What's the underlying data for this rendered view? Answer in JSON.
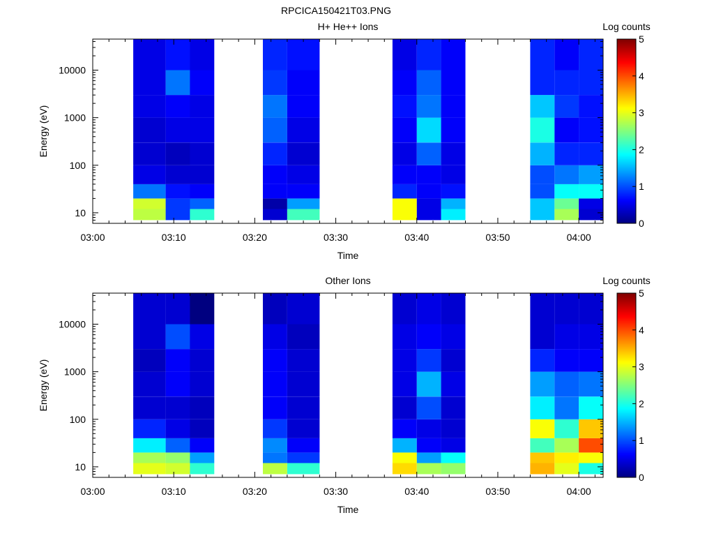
{
  "figure_title": "RPCICA150421T03.PNG",
  "chart_data": [
    {
      "type": "heatmap",
      "title": "H+ He++ Ions",
      "xlabel": "Time",
      "ylabel": "Energy (eV)",
      "y_scale": "log",
      "ylim": [
        6,
        45000
      ],
      "x_ticks": [
        "03:00",
        "03:10",
        "03:20",
        "03:30",
        "03:40",
        "03:50",
        "04:00"
      ],
      "y_ticks": [
        "10",
        "100",
        "1000",
        "10000"
      ],
      "colorbar": {
        "label": "Log counts",
        "range": [
          0,
          5
        ],
        "ticks": [
          "0",
          "1",
          "2",
          "3",
          "4",
          "5"
        ],
        "colormap": "jet"
      },
      "time_bins": [
        {
          "start": "03:05",
          "end": "03:09"
        },
        {
          "start": "03:09",
          "end": "03:12"
        },
        {
          "start": "03:12",
          "end": "03:15"
        },
        {
          "start": "03:21",
          "end": "03:24"
        },
        {
          "start": "03:24",
          "end": "03:28"
        },
        {
          "start": "03:37",
          "end": "03:40"
        },
        {
          "start": "03:40",
          "end": "03:43"
        },
        {
          "start": "03:43",
          "end": "03:46"
        },
        {
          "start": "03:54",
          "end": "03:57"
        },
        {
          "start": "03:57",
          "end": "04:00"
        },
        {
          "start": "04:00",
          "end": "04:03"
        }
      ],
      "energy_rows": [
        {
          "min": 7,
          "max": 12,
          "values": [
            2.8,
            0.9,
            2.1,
            0.4,
            2.2,
            3.1,
            0.5,
            1.8,
            1.6,
            2.7,
            0.4
          ]
        },
        {
          "min": 12,
          "max": 20,
          "values": [
            2.9,
            0.9,
            1.1,
            0.2,
            1.4,
            3.1,
            0.5,
            1.5,
            1.6,
            2.4,
            0.5
          ]
        },
        {
          "min": 20,
          "max": 40,
          "values": [
            1.2,
            0.7,
            0.6,
            0.6,
            0.6,
            0.8,
            0.6,
            0.7,
            1.0,
            1.9,
            1.9
          ]
        },
        {
          "min": 40,
          "max": 100,
          "values": [
            0.5,
            0.4,
            0.4,
            0.6,
            0.5,
            0.6,
            0.6,
            0.5,
            1.0,
            1.2,
            1.4
          ]
        },
        {
          "min": 100,
          "max": 300,
          "values": [
            0.4,
            0.3,
            0.4,
            0.8,
            0.4,
            0.5,
            1.1,
            0.5,
            1.5,
            0.8,
            0.8
          ]
        },
        {
          "min": 300,
          "max": 1000,
          "values": [
            0.4,
            0.5,
            0.5,
            1.1,
            0.5,
            0.6,
            1.7,
            0.6,
            2.0,
            0.6,
            0.7
          ]
        },
        {
          "min": 1000,
          "max": 3000,
          "values": [
            0.5,
            0.6,
            0.5,
            1.2,
            0.6,
            0.7,
            1.2,
            0.6,
            1.6,
            0.9,
            0.7
          ]
        },
        {
          "min": 3000,
          "max": 10000,
          "values": [
            0.5,
            1.2,
            0.6,
            0.9,
            0.6,
            0.6,
            1.1,
            0.6,
            0.8,
            0.8,
            0.8
          ]
        },
        {
          "min": 10000,
          "max": 45000,
          "values": [
            0.5,
            0.7,
            0.5,
            0.8,
            0.7,
            0.5,
            0.8,
            0.6,
            0.8,
            0.6,
            0.8
          ]
        }
      ]
    },
    {
      "type": "heatmap",
      "title": "Other Ions",
      "xlabel": "Time",
      "ylabel": "Energy (eV)",
      "y_scale": "log",
      "ylim": [
        6,
        45000
      ],
      "x_ticks": [
        "03:00",
        "03:10",
        "03:20",
        "03:30",
        "03:40",
        "03:50",
        "04:00"
      ],
      "y_ticks": [
        "10",
        "100",
        "1000",
        "10000"
      ],
      "colorbar": {
        "label": "Log counts",
        "range": [
          0,
          5
        ],
        "ticks": [
          "0",
          "1",
          "2",
          "3",
          "4",
          "5"
        ],
        "colormap": "jet"
      },
      "time_bins": [
        {
          "start": "03:05",
          "end": "03:09"
        },
        {
          "start": "03:09",
          "end": "03:12"
        },
        {
          "start": "03:12",
          "end": "03:15"
        },
        {
          "start": "03:21",
          "end": "03:24"
        },
        {
          "start": "03:24",
          "end": "03:28"
        },
        {
          "start": "03:37",
          "end": "03:40"
        },
        {
          "start": "03:40",
          "end": "03:43"
        },
        {
          "start": "03:43",
          "end": "03:46"
        },
        {
          "start": "03:54",
          "end": "03:57"
        },
        {
          "start": "03:57",
          "end": "04:00"
        },
        {
          "start": "04:00",
          "end": "04:03"
        }
      ],
      "energy_rows": [
        {
          "min": 7,
          "max": 12,
          "values": [
            3.0,
            2.9,
            2.1,
            2.8,
            2.1,
            3.3,
            2.7,
            2.6,
            3.5,
            3.0,
            2.0
          ]
        },
        {
          "min": 12,
          "max": 20,
          "values": [
            2.7,
            2.6,
            1.4,
            1.2,
            0.9,
            3.1,
            1.4,
            1.9,
            3.4,
            3.2,
            3.1
          ]
        },
        {
          "min": 20,
          "max": 40,
          "values": [
            1.8,
            1.1,
            0.6,
            1.3,
            0.6,
            1.5,
            0.6,
            0.5,
            2.2,
            2.7,
            4.0
          ]
        },
        {
          "min": 40,
          "max": 100,
          "values": [
            0.8,
            0.5,
            0.3,
            0.9,
            0.4,
            0.6,
            0.5,
            0.4,
            3.1,
            2.1,
            3.4
          ]
        },
        {
          "min": 100,
          "max": 300,
          "values": [
            0.4,
            0.4,
            0.3,
            0.6,
            0.4,
            0.4,
            1.0,
            0.4,
            1.8,
            1.2,
            1.9
          ]
        },
        {
          "min": 300,
          "max": 1000,
          "values": [
            0.4,
            0.6,
            0.4,
            0.6,
            0.4,
            0.5,
            1.5,
            0.5,
            1.4,
            1.1,
            1.2
          ]
        },
        {
          "min": 1000,
          "max": 3000,
          "values": [
            0.3,
            0.6,
            0.4,
            0.6,
            0.4,
            0.5,
            0.9,
            0.4,
            0.8,
            0.6,
            0.6
          ]
        },
        {
          "min": 3000,
          "max": 10000,
          "values": [
            0.4,
            1.0,
            0.5,
            0.5,
            0.3,
            0.5,
            0.6,
            0.5,
            0.4,
            0.5,
            0.5
          ]
        },
        {
          "min": 10000,
          "max": 45000,
          "values": [
            0.4,
            0.4,
            0.0,
            0.3,
            0.4,
            0.4,
            0.5,
            0.4,
            0.4,
            0.4,
            0.4
          ]
        }
      ]
    }
  ]
}
